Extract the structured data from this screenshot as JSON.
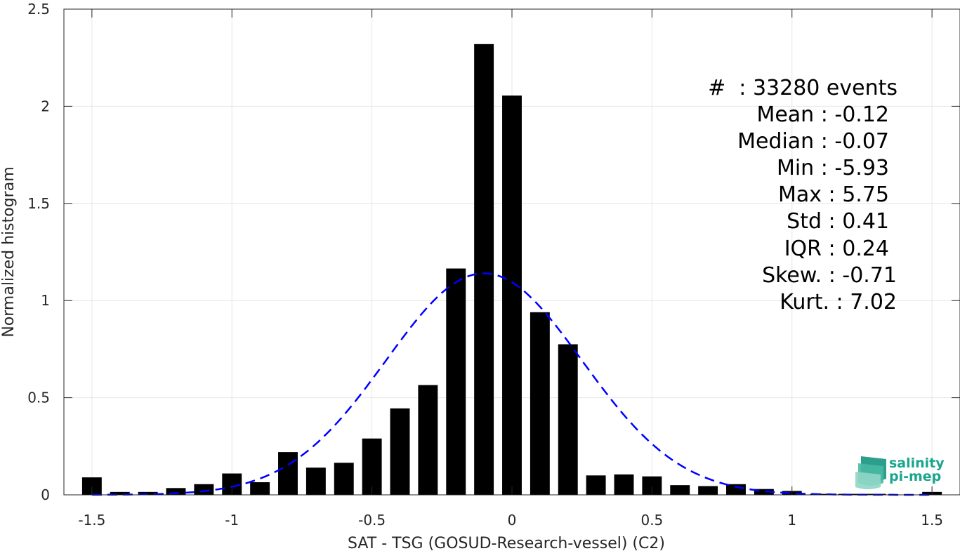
{
  "chart_data": {
    "type": "bar",
    "xlabel": "SAT - TSG (GOSUD-Research-vessel) (C2)",
    "ylabel": "Normalized histogram",
    "xlim": [
      -1.6,
      1.6
    ],
    "ylim": [
      0,
      2.5
    ],
    "grid": true,
    "bar_width": 0.07,
    "bar_color": "#000000",
    "x_ticks": [
      -1.5,
      -1,
      -0.5,
      0,
      0.5,
      1,
      1.5
    ],
    "x_tick_labels": [
      "-1.5",
      "-1",
      "-0.5",
      "0",
      "0.5",
      "1",
      "1.5"
    ],
    "y_ticks": [
      0,
      0.5,
      1,
      1.5,
      2,
      2.5
    ],
    "y_tick_labels": [
      "0",
      "0.5",
      "1",
      "1.5",
      "2",
      "2.5"
    ],
    "bins": [
      {
        "x": -1.5,
        "y": 0.09
      },
      {
        "x": -1.4,
        "y": 0.015
      },
      {
        "x": -1.3,
        "y": 0.015
      },
      {
        "x": -1.2,
        "y": 0.035
      },
      {
        "x": -1.1,
        "y": 0.055
      },
      {
        "x": -1.0,
        "y": 0.11
      },
      {
        "x": -0.9,
        "y": 0.065
      },
      {
        "x": -0.8,
        "y": 0.22
      },
      {
        "x": -0.7,
        "y": 0.14
      },
      {
        "x": -0.6,
        "y": 0.165
      },
      {
        "x": -0.5,
        "y": 0.29
      },
      {
        "x": -0.4,
        "y": 0.445
      },
      {
        "x": -0.3,
        "y": 0.565
      },
      {
        "x": -0.2,
        "y": 1.165
      },
      {
        "x": -0.1,
        "y": 2.32
      },
      {
        "x": 0.0,
        "y": 2.055
      },
      {
        "x": 0.1,
        "y": 0.94
      },
      {
        "x": 0.2,
        "y": 0.775
      },
      {
        "x": 0.3,
        "y": 0.1
      },
      {
        "x": 0.4,
        "y": 0.105
      },
      {
        "x": 0.5,
        "y": 0.095
      },
      {
        "x": 0.6,
        "y": 0.05
      },
      {
        "x": 0.7,
        "y": 0.045
      },
      {
        "x": 0.8,
        "y": 0.055
      },
      {
        "x": 0.9,
        "y": 0.03
      },
      {
        "x": 1.0,
        "y": 0.02
      },
      {
        "x": 1.1,
        "y": 0.005
      },
      {
        "x": 1.2,
        "y": 0.005
      },
      {
        "x": 1.3,
        "y": 0.005
      },
      {
        "x": 1.5,
        "y": 0.015
      }
    ],
    "fit_curve": {
      "type": "gaussian",
      "color": "#0000ff",
      "style": "dashed",
      "mean": -0.1,
      "std": 0.35,
      "peak": 1.14
    },
    "annotations": [
      "#  : 33280 events",
      "Mean : -0.12",
      "Median : -0.07",
      "Min : -5.93",
      "Max : 5.75",
      "Std : 0.41",
      "IQR : 0.24",
      "Skew. : -0.71",
      "Kurt. : 7.02"
    ]
  },
  "logo": {
    "line1": "salinity",
    "line2": "pi-mep"
  }
}
